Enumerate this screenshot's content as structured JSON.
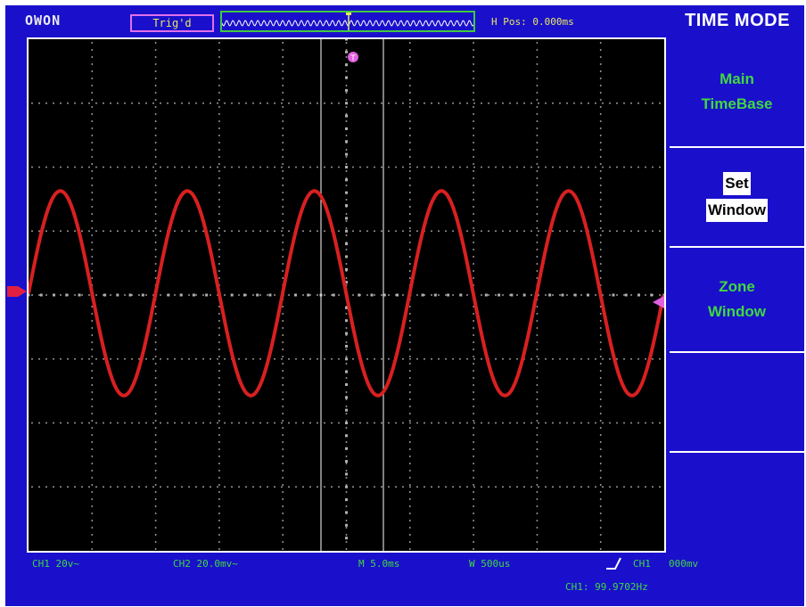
{
  "header": {
    "brand": "OWON",
    "trigger_status": "Trig'd",
    "horizontal_position": "H Pos: 0.000ms",
    "menu_title": "TIME MODE"
  },
  "menu": {
    "items": [
      {
        "line1": "Main",
        "line2": "TimeBase",
        "selected": false
      },
      {
        "line1": "Set",
        "line2": "Window",
        "selected": true
      },
      {
        "line1": "Zone",
        "line2": "Window",
        "selected": false
      },
      {
        "line1": "",
        "line2": "",
        "selected": false
      },
      {
        "line1": "",
        "line2": "",
        "selected": false
      }
    ]
  },
  "status": {
    "ch1": "CH1 20v~",
    "ch2": "CH2 20.0mv~",
    "main_timebase": "M 5.0ms",
    "window_timebase": "W 500us",
    "trigger_source": "CH1",
    "trigger_level": "000mv",
    "frequency": "CH1: 99.9702Hz"
  },
  "colors": {
    "background": "#1a10cc",
    "trace": "#d82020",
    "grid": "#b0b0b0",
    "menu_text": "#40d840",
    "status_text": "#40d840",
    "trigger_marker": "#e060e0",
    "ground_marker": "#e02040"
  },
  "icons": {
    "trigger_edge": "rising-edge-icon",
    "trigger_position": "trigger-position-marker-icon",
    "ground_level": "ground-level-marker-icon",
    "trigger_level": "trigger-level-marker-icon"
  },
  "waveform": {
    "channel": "CH1",
    "shape": "sine",
    "cycles_on_screen": 5,
    "amplitude_divisions": 1.6
  }
}
